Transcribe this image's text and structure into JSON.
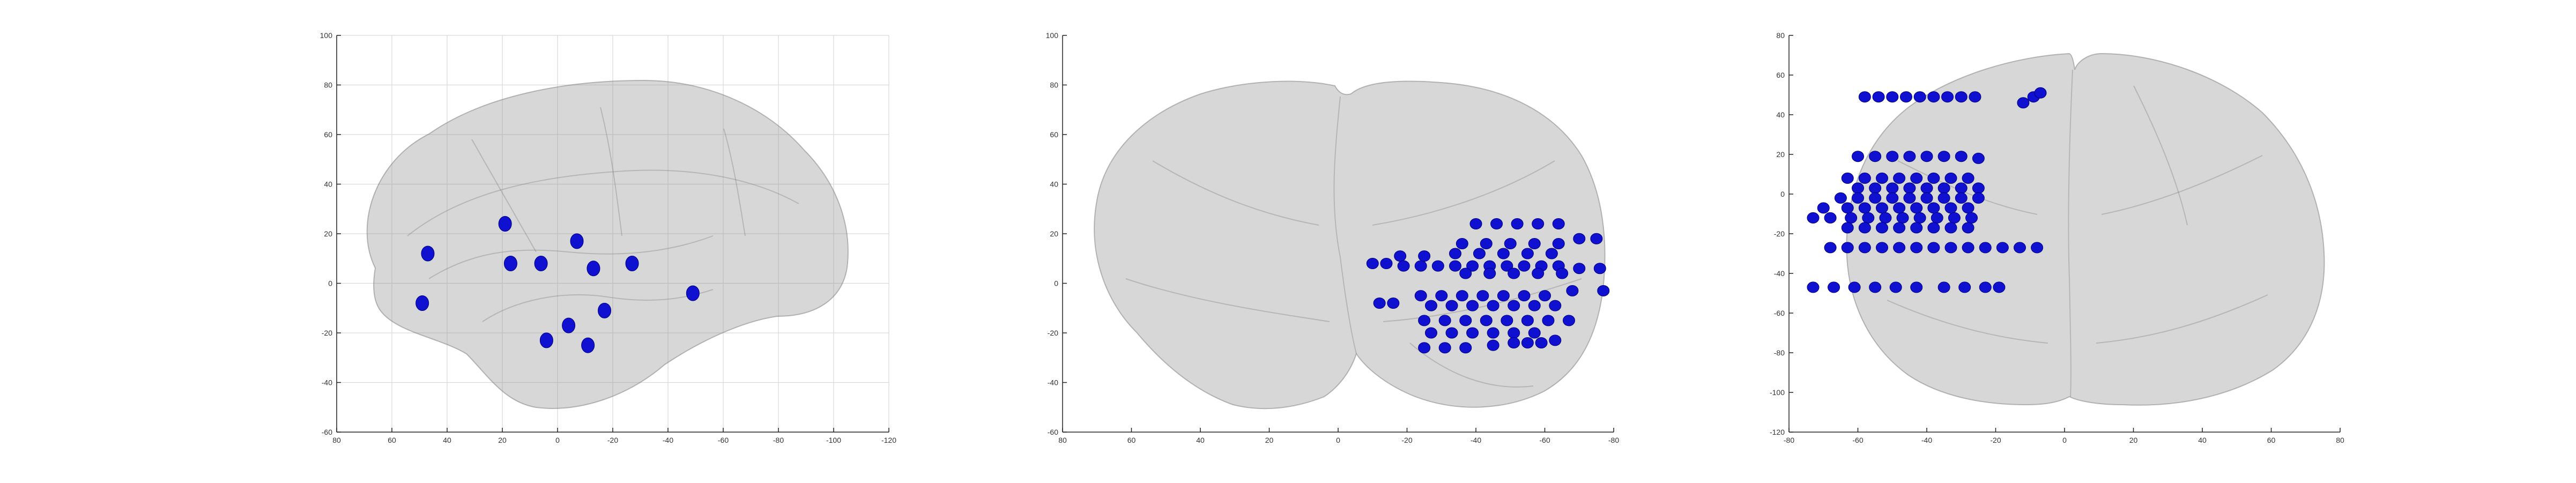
{
  "chart_data": [
    {
      "type": "scatter",
      "view": "sagittal",
      "title": "",
      "xlabel": "",
      "ylabel": "",
      "xlim": [
        80,
        -120
      ],
      "ylim": [
        -60,
        100
      ],
      "x_ticks": [
        80,
        60,
        40,
        20,
        0,
        -20,
        -40,
        -60,
        -80,
        -100,
        -120
      ],
      "y_ticks": [
        100,
        80,
        60,
        40,
        20,
        0,
        -20,
        -40,
        -60
      ],
      "grid": true,
      "marker_color": "#1010d0",
      "points": [
        {
          "x": 47,
          "y": 12
        },
        {
          "x": 49,
          "y": -8
        },
        {
          "x": 19,
          "y": 24
        },
        {
          "x": 17,
          "y": 8
        },
        {
          "x": 6,
          "y": 8
        },
        {
          "x": -7,
          "y": 17
        },
        {
          "x": -13,
          "y": 6
        },
        {
          "x": -27,
          "y": 8
        },
        {
          "x": -17,
          "y": -11
        },
        {
          "x": -49,
          "y": -4
        },
        {
          "x": -4,
          "y": -17
        },
        {
          "x": 4,
          "y": -23
        },
        {
          "x": -11,
          "y": -25
        }
      ]
    },
    {
      "type": "scatter",
      "view": "coronal",
      "title": "",
      "xlabel": "",
      "ylabel": "",
      "xlim": [
        80,
        -80
      ],
      "ylim": [
        -60,
        100
      ],
      "x_ticks": [
        80,
        60,
        40,
        20,
        0,
        -20,
        -40,
        -60,
        -80
      ],
      "y_ticks": [
        100,
        80,
        60,
        40,
        20,
        0,
        -20,
        -40,
        -60
      ],
      "grid": false,
      "marker_color": "#1010d0",
      "points": [
        {
          "x": -40,
          "y": 24
        },
        {
          "x": -46,
          "y": 24
        },
        {
          "x": -52,
          "y": 24
        },
        {
          "x": -58,
          "y": 24
        },
        {
          "x": -64,
          "y": 24
        },
        {
          "x": -36,
          "y": 16
        },
        {
          "x": -43,
          "y": 16
        },
        {
          "x": -50,
          "y": 16
        },
        {
          "x": -57,
          "y": 16
        },
        {
          "x": -64,
          "y": 16
        },
        {
          "x": -70,
          "y": 18
        },
        {
          "x": -75,
          "y": 18
        },
        {
          "x": -34,
          "y": 12
        },
        {
          "x": -41,
          "y": 12
        },
        {
          "x": -48,
          "y": 12
        },
        {
          "x": -55,
          "y": 12
        },
        {
          "x": -62,
          "y": 12
        },
        {
          "x": -18,
          "y": 11
        },
        {
          "x": -25,
          "y": 11
        },
        {
          "x": -10,
          "y": 8
        },
        {
          "x": -14,
          "y": 8
        },
        {
          "x": -19,
          "y": 7
        },
        {
          "x": -24,
          "y": 7
        },
        {
          "x": -29,
          "y": 7
        },
        {
          "x": -34,
          "y": 7
        },
        {
          "x": -39,
          "y": 7
        },
        {
          "x": -44,
          "y": 7
        },
        {
          "x": -49,
          "y": 7
        },
        {
          "x": -54,
          "y": 7
        },
        {
          "x": -59,
          "y": 7
        },
        {
          "x": -64,
          "y": 7
        },
        {
          "x": -70,
          "y": 6
        },
        {
          "x": -76,
          "y": 6
        },
        {
          "x": -37,
          "y": 4
        },
        {
          "x": -44,
          "y": 4
        },
        {
          "x": -51,
          "y": 4
        },
        {
          "x": -58,
          "y": 4
        },
        {
          "x": -65,
          "y": 4
        },
        {
          "x": -68,
          "y": -3
        },
        {
          "x": -77,
          "y": -3
        },
        {
          "x": -24,
          "y": -5
        },
        {
          "x": -30,
          "y": -5
        },
        {
          "x": -36,
          "y": -5
        },
        {
          "x": -42,
          "y": -5
        },
        {
          "x": -48,
          "y": -5
        },
        {
          "x": -54,
          "y": -5
        },
        {
          "x": -60,
          "y": -5
        },
        {
          "x": -12,
          "y": -8
        },
        {
          "x": -16,
          "y": -8
        },
        {
          "x": -27,
          "y": -9
        },
        {
          "x": -33,
          "y": -9
        },
        {
          "x": -39,
          "y": -9
        },
        {
          "x": -45,
          "y": -9
        },
        {
          "x": -51,
          "y": -9
        },
        {
          "x": -57,
          "y": -9
        },
        {
          "x": -63,
          "y": -9
        },
        {
          "x": -25,
          "y": -15
        },
        {
          "x": -31,
          "y": -15
        },
        {
          "x": -37,
          "y": -15
        },
        {
          "x": -43,
          "y": -15
        },
        {
          "x": -49,
          "y": -15
        },
        {
          "x": -55,
          "y": -15
        },
        {
          "x": -61,
          "y": -15
        },
        {
          "x": -67,
          "y": -15
        },
        {
          "x": -27,
          "y": -20
        },
        {
          "x": -33,
          "y": -20
        },
        {
          "x": -39,
          "y": -20
        },
        {
          "x": -45,
          "y": -20
        },
        {
          "x": -51,
          "y": -20
        },
        {
          "x": -57,
          "y": -20
        },
        {
          "x": -25,
          "y": -26
        },
        {
          "x": -31,
          "y": -26
        },
        {
          "x": -37,
          "y": -26
        },
        {
          "x": -45,
          "y": -25
        },
        {
          "x": -51,
          "y": -24
        },
        {
          "x": -55,
          "y": -24
        },
        {
          "x": -59,
          "y": -24
        },
        {
          "x": -63,
          "y": -23
        }
      ]
    },
    {
      "type": "scatter",
      "view": "axial",
      "title": "",
      "xlabel": "",
      "ylabel": "",
      "xlim": [
        -80,
        80
      ],
      "ylim": [
        -120,
        80
      ],
      "x_ticks": [
        -80,
        -60,
        -40,
        -20,
        0,
        20,
        40,
        60,
        80
      ],
      "y_ticks": [
        80,
        60,
        40,
        20,
        0,
        -20,
        -40,
        -60,
        -80,
        -100,
        -120
      ],
      "grid": false,
      "marker_color": "#1010d0",
      "points": [
        {
          "x": -58,
          "y": 49
        },
        {
          "x": -54,
          "y": 49
        },
        {
          "x": -50,
          "y": 49
        },
        {
          "x": -46,
          "y": 49
        },
        {
          "x": -42,
          "y": 49
        },
        {
          "x": -38,
          "y": 49
        },
        {
          "x": -34,
          "y": 49
        },
        {
          "x": -30,
          "y": 49
        },
        {
          "x": -26,
          "y": 49
        },
        {
          "x": -12,
          "y": 46
        },
        {
          "x": -9,
          "y": 49
        },
        {
          "x": -7,
          "y": 51
        },
        {
          "x": -60,
          "y": 19
        },
        {
          "x": -55,
          "y": 19
        },
        {
          "x": -50,
          "y": 19
        },
        {
          "x": -45,
          "y": 19
        },
        {
          "x": -40,
          "y": 19
        },
        {
          "x": -35,
          "y": 19
        },
        {
          "x": -30,
          "y": 19
        },
        {
          "x": -25,
          "y": 18
        },
        {
          "x": -63,
          "y": 8
        },
        {
          "x": -58,
          "y": 8
        },
        {
          "x": -53,
          "y": 8
        },
        {
          "x": -48,
          "y": 8
        },
        {
          "x": -43,
          "y": 8
        },
        {
          "x": -38,
          "y": 8
        },
        {
          "x": -33,
          "y": 8
        },
        {
          "x": -28,
          "y": 8
        },
        {
          "x": -60,
          "y": 3
        },
        {
          "x": -55,
          "y": 3
        },
        {
          "x": -50,
          "y": 3
        },
        {
          "x": -45,
          "y": 3
        },
        {
          "x": -40,
          "y": 3
        },
        {
          "x": -35,
          "y": 3
        },
        {
          "x": -30,
          "y": 3
        },
        {
          "x": -25,
          "y": 3
        },
        {
          "x": -65,
          "y": -2
        },
        {
          "x": -60,
          "y": -2
        },
        {
          "x": -55,
          "y": -2
        },
        {
          "x": -50,
          "y": -2
        },
        {
          "x": -45,
          "y": -2
        },
        {
          "x": -40,
          "y": -2
        },
        {
          "x": -35,
          "y": -2
        },
        {
          "x": -30,
          "y": -2
        },
        {
          "x": -25,
          "y": -2
        },
        {
          "x": -70,
          "y": -7
        },
        {
          "x": -63,
          "y": -7
        },
        {
          "x": -58,
          "y": -7
        },
        {
          "x": -53,
          "y": -7
        },
        {
          "x": -48,
          "y": -7
        },
        {
          "x": -43,
          "y": -7
        },
        {
          "x": -38,
          "y": -7
        },
        {
          "x": -33,
          "y": -7
        },
        {
          "x": -28,
          "y": -7
        },
        {
          "x": -73,
          "y": -12
        },
        {
          "x": -68,
          "y": -12
        },
        {
          "x": -62,
          "y": -12
        },
        {
          "x": -57,
          "y": -12
        },
        {
          "x": -52,
          "y": -12
        },
        {
          "x": -47,
          "y": -12
        },
        {
          "x": -42,
          "y": -12
        },
        {
          "x": -37,
          "y": -12
        },
        {
          "x": -32,
          "y": -12
        },
        {
          "x": -27,
          "y": -12
        },
        {
          "x": -63,
          "y": -17
        },
        {
          "x": -58,
          "y": -17
        },
        {
          "x": -53,
          "y": -17
        },
        {
          "x": -48,
          "y": -17
        },
        {
          "x": -43,
          "y": -17
        },
        {
          "x": -38,
          "y": -17
        },
        {
          "x": -33,
          "y": -17
        },
        {
          "x": -28,
          "y": -17
        },
        {
          "x": -68,
          "y": -27
        },
        {
          "x": -63,
          "y": -27
        },
        {
          "x": -58,
          "y": -27
        },
        {
          "x": -53,
          "y": -27
        },
        {
          "x": -48,
          "y": -27
        },
        {
          "x": -43,
          "y": -27
        },
        {
          "x": -38,
          "y": -27
        },
        {
          "x": -33,
          "y": -27
        },
        {
          "x": -28,
          "y": -27
        },
        {
          "x": -23,
          "y": -27
        },
        {
          "x": -18,
          "y": -27
        },
        {
          "x": -13,
          "y": -27
        },
        {
          "x": -8,
          "y": -27
        },
        {
          "x": -73,
          "y": -47
        },
        {
          "x": -67,
          "y": -47
        },
        {
          "x": -61,
          "y": -47
        },
        {
          "x": -55,
          "y": -47
        },
        {
          "x": -49,
          "y": -47
        },
        {
          "x": -43,
          "y": -47
        },
        {
          "x": -35,
          "y": -47
        },
        {
          "x": -29,
          "y": -47
        },
        {
          "x": -23,
          "y": -47
        },
        {
          "x": -19,
          "y": -47
        }
      ]
    }
  ]
}
